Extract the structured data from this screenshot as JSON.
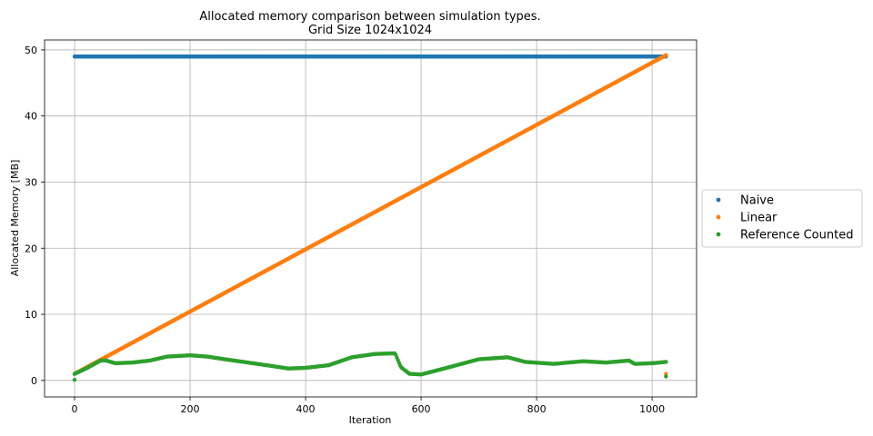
{
  "chart_data": {
    "type": "scatter",
    "title": "Allocated memory comparison between simulation types.",
    "subtitle": "Grid Size 1024x1024",
    "xlabel": "Iteration",
    "ylabel": "Allocated Memory [MB]",
    "xlim": [
      -52,
      1077
    ],
    "ylim": [
      -2.5,
      51.5
    ],
    "xticks": [
      0,
      200,
      400,
      600,
      800,
      1000
    ],
    "yticks": [
      0,
      10,
      20,
      30,
      40,
      50
    ],
    "grid": true,
    "legend_position": "right-outside",
    "series": [
      {
        "name": "Naive",
        "color": "#1f77b4",
        "x": [
          0,
          1024
        ],
        "y": [
          49,
          49
        ],
        "step": 1,
        "extra_points": []
      },
      {
        "name": "Linear",
        "color": "#ff7f0e",
        "x": [
          0,
          1024
        ],
        "y": [
          1.0,
          49.2
        ],
        "step": 1,
        "extra_points": [
          [
            1024,
            1.0
          ]
        ]
      },
      {
        "name": "Reference Counted",
        "color": "#2ca02c",
        "x": [
          0,
          20,
          45,
          55,
          70,
          100,
          130,
          160,
          200,
          230,
          260,
          300,
          340,
          370,
          400,
          440,
          480,
          520,
          555,
          565,
          580,
          600,
          640,
          700,
          750,
          780,
          830,
          880,
          920,
          960,
          970,
          1000,
          1024
        ],
        "y": [
          1.0,
          1.8,
          3.0,
          3.0,
          2.6,
          2.7,
          3.0,
          3.6,
          3.8,
          3.6,
          3.2,
          2.7,
          2.2,
          1.8,
          1.9,
          2.3,
          3.5,
          4.0,
          4.1,
          2.0,
          1.0,
          0.9,
          1.8,
          3.2,
          3.5,
          2.8,
          2.5,
          2.9,
          2.7,
          3.0,
          2.5,
          2.6,
          2.8
        ],
        "step": 2,
        "extra_points": [
          [
            0,
            0.1
          ],
          [
            1024,
            0.6
          ]
        ]
      }
    ]
  }
}
